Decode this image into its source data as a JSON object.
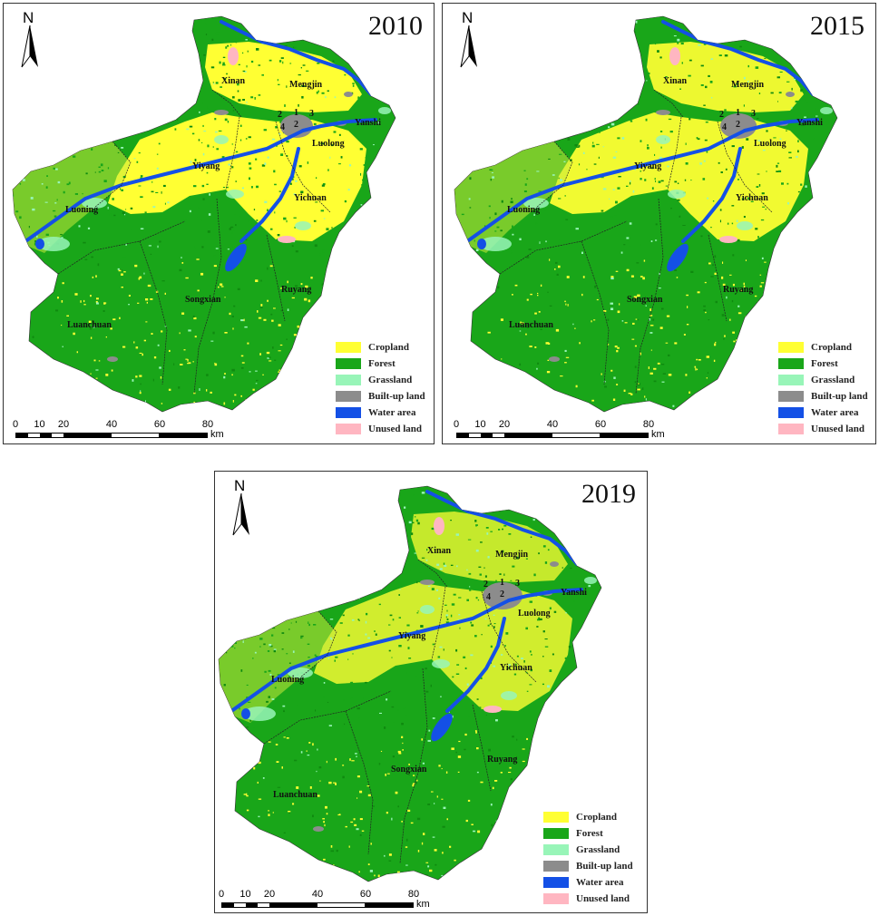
{
  "panels": [
    {
      "year": "2010",
      "north": "N",
      "unit": "km",
      "scale_ticks": [
        "0",
        "10",
        "20",
        "40",
        "60",
        "80"
      ]
    },
    {
      "year": "2015",
      "north": "N",
      "unit": "km",
      "scale_ticks": [
        "0",
        "10",
        "20",
        "40",
        "60",
        "80"
      ]
    },
    {
      "year": "2019",
      "north": "N",
      "unit": "km",
      "scale_ticks": [
        "0",
        "10",
        "20",
        "40",
        "60",
        "80"
      ]
    }
  ],
  "legend": [
    {
      "label": "Cropland",
      "color": "#ffff33"
    },
    {
      "label": "Forest",
      "color": "#19a619"
    },
    {
      "label": "Grassland",
      "color": "#98f5b8"
    },
    {
      "label": "Built-up land",
      "color": "#8c8c8c"
    },
    {
      "label": "Water area",
      "color": "#1450e6"
    },
    {
      "label": "Unused land",
      "color": "#ffb6c1"
    }
  ],
  "places": [
    "Xinan",
    "Mengjin",
    "Yanshi",
    "Luolong",
    "Yiyang",
    "Yichuan",
    "Luoning",
    "Songxian",
    "Ruyang",
    "Luanchuan"
  ],
  "district_numbers": [
    "1",
    "2",
    "3",
    "4"
  ]
}
